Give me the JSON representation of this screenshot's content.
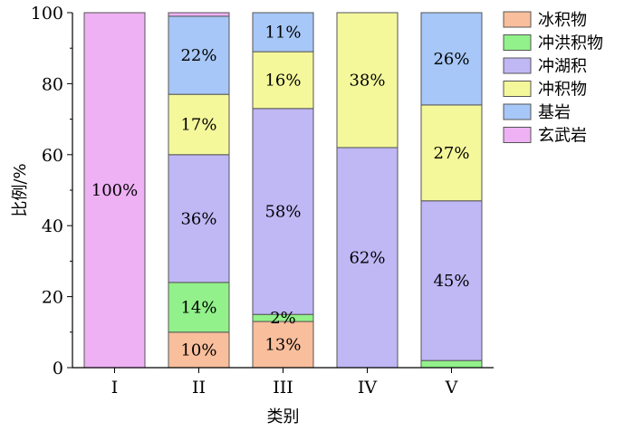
{
  "chart_data": {
    "type": "bar",
    "stacked": true,
    "xlabel": "类别",
    "ylabel": "比例/%",
    "ylim": [
      0,
      100
    ],
    "yticks": [
      0,
      20,
      40,
      60,
      80,
      100
    ],
    "categories": [
      "I",
      "II",
      "III",
      "IV",
      "V"
    ],
    "legend_position": "right",
    "series": [
      {
        "name": "冰积物",
        "color": "#f9be9c",
        "values": [
          0,
          10,
          13,
          0,
          0
        ],
        "labels": [
          "",
          "10%",
          "13%",
          "",
          ""
        ]
      },
      {
        "name": "冲洪积物",
        "color": "#92f18a",
        "values": [
          0,
          14,
          2,
          0,
          2
        ],
        "labels": [
          "",
          "14%",
          "2%",
          "",
          ""
        ]
      },
      {
        "name": "冲湖积",
        "color": "#c0b7f5",
        "values": [
          0,
          36,
          58,
          62,
          45
        ],
        "labels": [
          "",
          "36%",
          "58%",
          "62%",
          "45%"
        ]
      },
      {
        "name": "冲积物",
        "color": "#f4f89b",
        "values": [
          0,
          17,
          16,
          38,
          27
        ],
        "labels": [
          "",
          "17%",
          "16%",
          "38%",
          "27%"
        ]
      },
      {
        "name": "基岩",
        "color": "#a6c7f7",
        "values": [
          0,
          22,
          11,
          0,
          26
        ],
        "labels": [
          "",
          "22%",
          "11%",
          "",
          "26%"
        ]
      },
      {
        "name": "玄武岩",
        "color": "#eeb1f4",
        "values": [
          100,
          1,
          0,
          0,
          0
        ],
        "labels": [
          "100%",
          "",
          "",
          "",
          ""
        ]
      }
    ]
  }
}
